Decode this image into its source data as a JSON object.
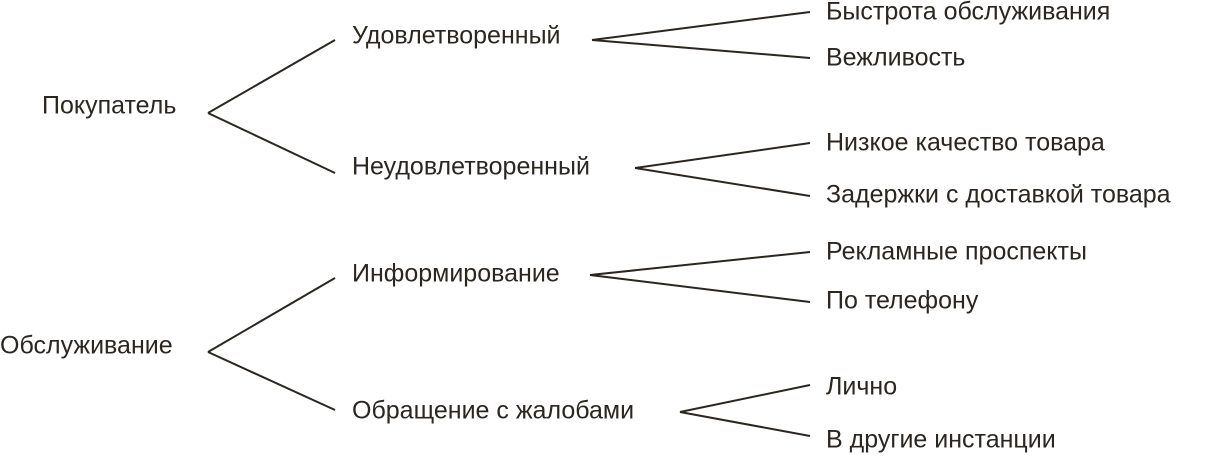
{
  "trees": [
    {
      "label": "Покупатель",
      "children": [
        {
          "label": "Удовлетворенный",
          "children": [
            {
              "label": "Быстрота обслуживания"
            },
            {
              "label": "Вежливость"
            }
          ]
        },
        {
          "label": "Неудовлетворенный",
          "children": [
            {
              "label": "Низкое качество товара"
            },
            {
              "label": "Задержки с доставкой товара"
            }
          ]
        }
      ]
    },
    {
      "label": "Обслуживание",
      "children": [
        {
          "label": "Информирование",
          "children": [
            {
              "label": "Рекламные проспекты"
            },
            {
              "label": "По телефону"
            }
          ]
        },
        {
          "label": "Обращение с жалобами",
          "children": [
            {
              "label": "Лично"
            },
            {
              "label": "В другие инстанции"
            }
          ]
        }
      ]
    }
  ]
}
